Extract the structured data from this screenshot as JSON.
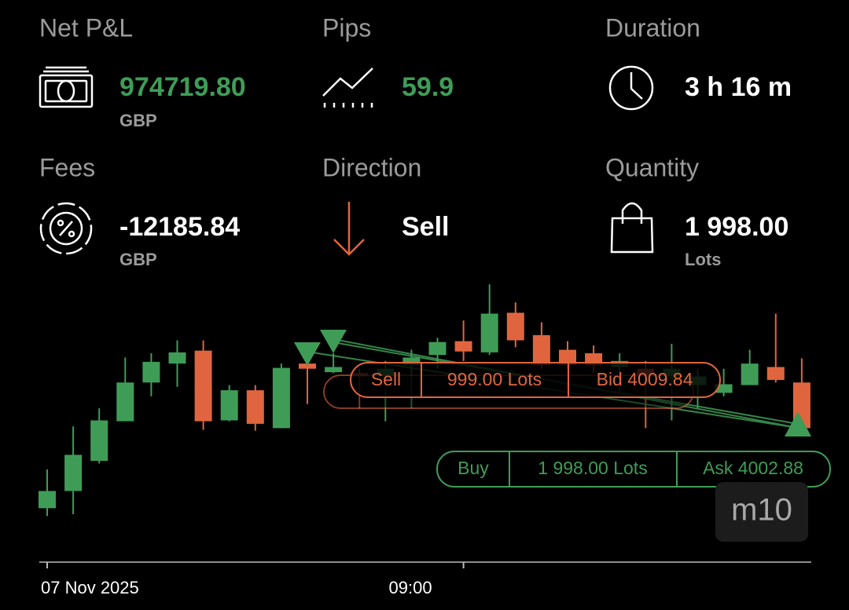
{
  "stats": [
    {
      "label": "Net P&L",
      "value": "974719.80",
      "unit": "GBP"
    },
    {
      "label": "Pips",
      "value": "59.9"
    },
    {
      "label": "Duration",
      "value": "3 h 16 m"
    },
    {
      "label": "Fees",
      "value": "-12185.84",
      "unit": "GBP"
    },
    {
      "label": "Direction",
      "value": "Sell"
    },
    {
      "label": "Quantity",
      "value": "1 998.00",
      "unit": "Lots"
    }
  ],
  "chart_data": {
    "type": "candlestick",
    "timeframe": "m10",
    "categories": [
      "07 Nov 2025",
      null,
      null,
      null,
      null,
      null,
      null,
      null,
      null,
      null,
      null,
      null,
      null,
      null,
      null,
      null,
      "09:00",
      null,
      null,
      null,
      null,
      null,
      null,
      null,
      null,
      null,
      null,
      null,
      null,
      null
    ],
    "open": [
      3993.8,
      3995.8,
      3999.3,
      4003.9,
      4008.4,
      4010.6,
      4012.1,
      4004.0,
      4007.5,
      4003.1,
      4010.6,
      4009.6,
      4009.5,
      4009.1,
      4010.4,
      4011.6,
      4013.2,
      4011.9,
      4016.5,
      4013.9,
      4012.2,
      4011.8,
      4010.2,
      4010.0,
      4008.6,
      4008.1,
      4007.2,
      4008.1,
      4010.2,
      4008.4
    ],
    "high": [
      3998.3,
      4003.3,
      4005.4,
      4011.3,
      4011.8,
      4013.3,
      4013.3,
      4008.1,
      4008.1,
      4010.6,
      4012.0,
      4011.8,
      4010.0,
      4010.9,
      4012.2,
      4013.6,
      4015.6,
      4019.8,
      4017.7,
      4015.4,
      4013.2,
      4012.7,
      4011.8,
      4010.9,
      4012.9,
      4010.0,
      4010.0,
      4012.2,
      4016.4,
      4011.2
    ],
    "low": [
      3992.9,
      3993.1,
      3999.0,
      4003.9,
      4006.8,
      4007.9,
      4002.9,
      4003.9,
      4002.8,
      4003.1,
      4005.9,
      4009.5,
      4005.4,
      4003.9,
      4005.4,
      4010.0,
      4010.9,
      4011.6,
      4012.5,
      4010.0,
      4010.0,
      4009.5,
      4007.2,
      4003.1,
      4004.0,
      4005.4,
      4006.8,
      4008.1,
      4008.4,
      4002.9
    ],
    "close": [
      3995.8,
      4000.0,
      4004.0,
      4008.4,
      4010.8,
      4011.9,
      4003.9,
      4007.5,
      4003.6,
      4010.1,
      4010.0,
      4010.2,
      4009.1,
      4010.0,
      4011.3,
      4013.1,
      4012.0,
      4016.4,
      4013.3,
      4010.4,
      4010.4,
      4010.4,
      4010.9,
      4009.1,
      4010.0,
      4009.1,
      4008.2,
      4010.6,
      4008.7,
      4003.1
    ],
    "ylim": [
      3989,
      4020
    ],
    "up_color": "#3f9c57",
    "down_color": "#e0653e",
    "orders": [
      {
        "side": "Sell",
        "quantity": "999.00 Lots",
        "price": "Bid 4009.84"
      },
      {
        "side": "Buy",
        "quantity": "1 998.00 Lots",
        "price": "Ask 4002.88"
      }
    ]
  }
}
